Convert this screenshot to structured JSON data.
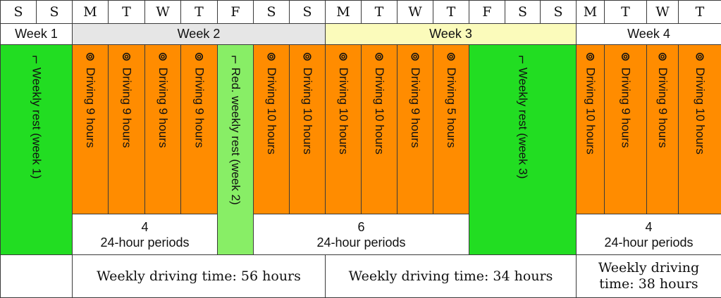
{
  "colors": {
    "driving": "#ff8c00",
    "rest": "#22dd22",
    "reduced_rest": "#88ee66",
    "week2_header": "#e6e6e6",
    "week3_header": "#fbfbbb",
    "plain": "#ffffff"
  },
  "icons": {
    "driving": "⊚",
    "rest": "┐"
  },
  "days": [
    "S",
    "S",
    "M",
    "T",
    "W",
    "T",
    "F",
    "S",
    "S",
    "M",
    "T",
    "W",
    "T",
    "F",
    "S",
    "S",
    "M",
    "T",
    "W",
    "T"
  ],
  "weeks": [
    {
      "label": "Week 1",
      "start": 0,
      "span": 2,
      "color": "plain"
    },
    {
      "label": "Week 2",
      "start": 2,
      "span": 7,
      "color": "week2_header"
    },
    {
      "label": "Week 3",
      "start": 9,
      "span": 7,
      "color": "week3_header"
    },
    {
      "label": "Week 4",
      "start": 16,
      "span": 4,
      "color": "plain"
    }
  ],
  "activities": [
    {
      "type": "rest",
      "start": 0,
      "span": 2,
      "label": "Weekly rest (week 1)",
      "full": true
    },
    {
      "type": "driving",
      "start": 2,
      "span": 1,
      "label": "Driving 9 hours"
    },
    {
      "type": "driving",
      "start": 3,
      "span": 1,
      "label": "Driving 9 hours"
    },
    {
      "type": "driving",
      "start": 4,
      "span": 1,
      "label": "Driving 9 hours"
    },
    {
      "type": "driving",
      "start": 5,
      "span": 1,
      "label": "Driving 9 hours"
    },
    {
      "type": "reduced_rest",
      "start": 6,
      "span": 1,
      "label": "Red. weekly rest (week 2)",
      "full": true
    },
    {
      "type": "driving",
      "start": 7,
      "span": 1,
      "label": "Driving 10 hours"
    },
    {
      "type": "driving",
      "start": 8,
      "span": 1,
      "label": "Driving 10 hours"
    },
    {
      "type": "driving",
      "start": 9,
      "span": 1,
      "label": "Driving 10 hours"
    },
    {
      "type": "driving",
      "start": 10,
      "span": 1,
      "label": "Driving 10 hours"
    },
    {
      "type": "driving",
      "start": 11,
      "span": 1,
      "label": "Driving 9 hours"
    },
    {
      "type": "driving",
      "start": 12,
      "span": 1,
      "label": "Driving 5 hours"
    },
    {
      "type": "rest",
      "start": 13,
      "span": 3,
      "label": "Weekly rest (week 3)",
      "full": true
    },
    {
      "type": "driving",
      "start": 16,
      "span": 1,
      "label": "Driving 10 hours"
    },
    {
      "type": "driving",
      "start": 17,
      "span": 1,
      "label": "Driving 9 hours"
    },
    {
      "type": "driving",
      "start": 18,
      "span": 1,
      "label": "Driving 9 hours"
    },
    {
      "type": "driving",
      "start": 19,
      "span": 1,
      "label": "Driving 10 hours"
    }
  ],
  "periods": [
    {
      "count": "4",
      "label": "24-hour periods",
      "start": 2,
      "span": 4
    },
    {
      "count": "6",
      "label": "24-hour periods",
      "start": 7,
      "span": 6
    },
    {
      "count": "4",
      "label": "24-hour periods",
      "start": 16,
      "span": 4
    }
  ],
  "weekly_totals": [
    {
      "label": "",
      "start": 0,
      "span": 2
    },
    {
      "label": "Weekly driving time: 56 hours",
      "start": 2,
      "span": 7
    },
    {
      "label": "Weekly driving time: 34 hours",
      "start": 9,
      "span": 7
    },
    {
      "label": "Weekly driving\ntime: 38 hours",
      "start": 16,
      "span": 4
    }
  ]
}
